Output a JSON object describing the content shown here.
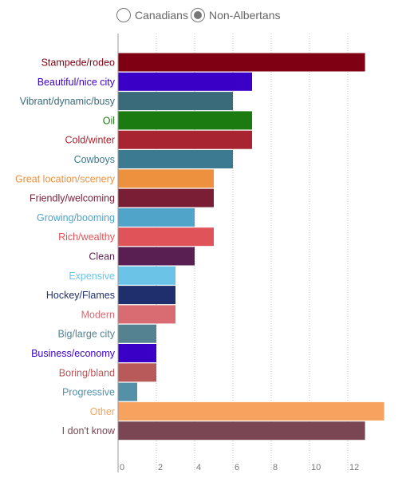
{
  "legend": {
    "options": [
      {
        "label": "Canadians",
        "selected": false
      },
      {
        "label": "Non-Albertans",
        "selected": true
      }
    ]
  },
  "chart_data": {
    "type": "bar",
    "orientation": "horizontal",
    "title": "",
    "xlabel": "",
    "ylabel": "",
    "xlim": [
      0,
      14
    ],
    "xticks": [
      0,
      2,
      4,
      6,
      8,
      10,
      12
    ],
    "grid": "vertical-dotted",
    "categories": [
      "Stampede/rodeo",
      "Beautiful/nice city",
      "Vibrant/dynamic/busy",
      "Oil",
      "Cold/winter",
      "Cowboys",
      "Great location/scenery",
      "Friendly/welcoming",
      "Growing/booming",
      "Rich/wealthy",
      "Clean",
      "Expensive",
      "Hockey/Flames",
      "Modern",
      "Big/large city",
      "Business/economy",
      "Boring/bland",
      "Progressive",
      "Other",
      "I don't know"
    ],
    "values": [
      12.9,
      7,
      6,
      7,
      7,
      6,
      5,
      5,
      4,
      5,
      4,
      3,
      3,
      3,
      2,
      2,
      2,
      1,
      13.9,
      12.9
    ],
    "colors": [
      "#7f0013",
      "#3b00c6",
      "#3a6b7a",
      "#1b7a10",
      "#a82430",
      "#3c7a92",
      "#ee913f",
      "#7a1e36",
      "#50a3c9",
      "#e05358",
      "#5a1f52",
      "#6bc4e8",
      "#1f2f6e",
      "#d96b72",
      "#558291",
      "#3b00c6",
      "#b85a5a",
      "#5590a9",
      "#f7a35f",
      "#7a4654"
    ]
  }
}
